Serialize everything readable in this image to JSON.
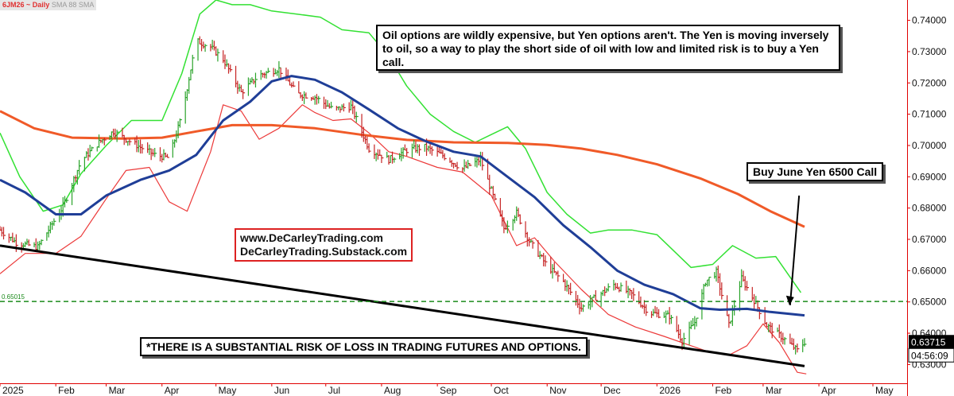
{
  "header": {
    "symbol_label": "6JM26 ~ Daily",
    "indicator_label": "SMA 88 SMA"
  },
  "annotations": {
    "main_note": "Oil options are wildly expensive, but Yen options aren't. The Yen is moving inversely to oil, so a way to play the short side of oil with low and limited risk is to buy a Yen call.",
    "trade_label": "Buy June Yen 6500 Call",
    "website_1": "www.DeCarleyTrading.com",
    "website_2": "DeCarleyTrading.Substack.com",
    "risk_disclaimer": "*THERE IS A SUBSTANTIAL RISK OF LOSS IN TRADING FUTURES AND OPTIONS."
  },
  "chart_data": {
    "type": "line",
    "title": "6JM26 ~ Daily",
    "xlabel": "",
    "ylabel": "",
    "x_range": [
      "2025-01-01",
      "2026-05-20"
    ],
    "ylim": [
      0.624,
      0.7465
    ],
    "grid": false,
    "y_ticks": [
      "0.74000",
      "0.73000",
      "0.72000",
      "0.71000",
      "0.70000",
      "0.69000",
      "0.68000",
      "0.67000",
      "0.66000",
      "0.65000",
      "0.64000",
      "0.63000"
    ],
    "x_ticks": [
      {
        "label": "2025",
        "date": "2025-01-01"
      },
      {
        "label": "Feb",
        "date": "2025-02-01"
      },
      {
        "label": "Mar",
        "date": "2025-03-01"
      },
      {
        "label": "Apr",
        "date": "2025-04-01"
      },
      {
        "label": "May",
        "date": "2025-05-01"
      },
      {
        "label": "Jun",
        "date": "2025-06-01"
      },
      {
        "label": "Jul",
        "date": "2025-07-01"
      },
      {
        "label": "Aug",
        "date": "2025-08-01"
      },
      {
        "label": "Sep",
        "date": "2025-09-01"
      },
      {
        "label": "Oct",
        "date": "2025-10-01"
      },
      {
        "label": "Nov",
        "date": "2025-11-01"
      },
      {
        "label": "Dec",
        "date": "2025-12-01"
      },
      {
        "label": "2026",
        "date": "2026-01-01"
      },
      {
        "label": "Feb",
        "date": "2026-02-01"
      },
      {
        "label": "Mar",
        "date": "2026-03-01"
      },
      {
        "label": "Apr",
        "date": "2026-04-01"
      },
      {
        "label": "May",
        "date": "2026-05-01"
      }
    ],
    "last_price": "0.63715",
    "countdown": "04:56:09",
    "strike_line": {
      "value": 0.65015,
      "label": "0.65015",
      "color": "#1a8a1a"
    },
    "trendline": {
      "from": [
        "2025-01-01",
        0.668
      ],
      "to": [
        "2026-03-24",
        0.6295
      ],
      "color": "#000000"
    },
    "arrow": {
      "from": [
        "2026-03-21",
        0.684
      ],
      "to": [
        "2026-03-16",
        0.651
      ]
    },
    "series": [
      {
        "key": "sma88",
        "color": "#f05a28",
        "points": [
          [
            "2025-01-01",
            0.711
          ],
          [
            "2025-01-20",
            0.7055
          ],
          [
            "2025-02-10",
            0.7025
          ],
          [
            "2025-03-10",
            0.7022
          ],
          [
            "2025-04-01",
            0.7025
          ],
          [
            "2025-04-20",
            0.7045
          ],
          [
            "2025-05-10",
            0.7065
          ],
          [
            "2025-06-01",
            0.7065
          ],
          [
            "2025-06-25",
            0.7055
          ],
          [
            "2025-07-20",
            0.7035
          ],
          [
            "2025-08-15",
            0.7018
          ],
          [
            "2025-09-10",
            0.701
          ],
          [
            "2025-10-10",
            0.7008
          ],
          [
            "2025-11-01",
            0.7002
          ],
          [
            "2025-11-20",
            0.699
          ],
          [
            "2025-12-10",
            0.697
          ],
          [
            "2026-01-01",
            0.694
          ],
          [
            "2026-01-25",
            0.6895
          ],
          [
            "2026-02-15",
            0.6845
          ],
          [
            "2026-03-05",
            0.679
          ],
          [
            "2026-03-24",
            0.674
          ]
        ]
      },
      {
        "key": "ma_blue",
        "color": "#1f3e97",
        "points": [
          [
            "2025-01-01",
            0.689
          ],
          [
            "2025-01-15",
            0.685
          ],
          [
            "2025-02-01",
            0.678
          ],
          [
            "2025-02-15",
            0.678
          ],
          [
            "2025-03-01",
            0.684
          ],
          [
            "2025-03-20",
            0.689
          ],
          [
            "2025-04-05",
            0.692
          ],
          [
            "2025-04-20",
            0.697
          ],
          [
            "2025-05-05",
            0.708
          ],
          [
            "2025-05-20",
            0.714
          ],
          [
            "2025-06-01",
            0.7205
          ],
          [
            "2025-06-12",
            0.7222
          ],
          [
            "2025-06-25",
            0.721
          ],
          [
            "2025-07-10",
            0.717
          ],
          [
            "2025-07-25",
            0.7115
          ],
          [
            "2025-08-10",
            0.7055
          ],
          [
            "2025-08-25",
            0.7015
          ],
          [
            "2025-09-10",
            0.698
          ],
          [
            "2025-09-25",
            0.6965
          ],
          [
            "2025-10-10",
            0.69
          ],
          [
            "2025-10-25",
            0.6835
          ],
          [
            "2025-11-10",
            0.6745
          ],
          [
            "2025-11-25",
            0.6675
          ],
          [
            "2025-12-10",
            0.66
          ],
          [
            "2025-12-25",
            0.6555
          ],
          [
            "2026-01-10",
            0.6525
          ],
          [
            "2026-01-25",
            0.648
          ],
          [
            "2026-02-05",
            0.6475
          ],
          [
            "2026-02-20",
            0.6478
          ],
          [
            "2026-03-05",
            0.6468
          ],
          [
            "2026-03-24",
            0.6457
          ]
        ]
      },
      {
        "key": "band_upper",
        "color": "#33e133",
        "points": [
          [
            "2025-01-01",
            0.704
          ],
          [
            "2025-01-12",
            0.69
          ],
          [
            "2025-01-25",
            0.679
          ],
          [
            "2025-02-05",
            0.681
          ],
          [
            "2025-02-15",
            0.691
          ],
          [
            "2025-03-01",
            0.7
          ],
          [
            "2025-03-15",
            0.708
          ],
          [
            "2025-04-01",
            0.708
          ],
          [
            "2025-04-12",
            0.723
          ],
          [
            "2025-04-22",
            0.742
          ],
          [
            "2025-05-01",
            0.7465
          ],
          [
            "2025-05-10",
            0.745
          ],
          [
            "2025-05-20",
            0.745
          ],
          [
            "2025-06-01",
            0.743
          ],
          [
            "2025-06-15",
            0.742
          ],
          [
            "2025-06-28",
            0.741
          ],
          [
            "2025-07-10",
            0.737
          ],
          [
            "2025-07-25",
            0.736
          ],
          [
            "2025-08-05",
            0.7285
          ],
          [
            "2025-08-15",
            0.719
          ],
          [
            "2025-08-28",
            0.71
          ],
          [
            "2025-09-10",
            0.7045
          ],
          [
            "2025-09-22",
            0.701
          ],
          [
            "2025-10-01",
            0.7035
          ],
          [
            "2025-10-10",
            0.706
          ],
          [
            "2025-10-20",
            0.699
          ],
          [
            "2025-11-01",
            0.685
          ],
          [
            "2025-11-12",
            0.678
          ],
          [
            "2025-11-25",
            0.672
          ],
          [
            "2025-12-05",
            0.673
          ],
          [
            "2025-12-18",
            0.673
          ],
          [
            "2026-01-01",
            0.6715
          ],
          [
            "2026-01-20",
            0.661
          ],
          [
            "2026-02-01",
            0.662
          ],
          [
            "2026-02-12",
            0.668
          ],
          [
            "2026-02-25",
            0.664
          ],
          [
            "2026-03-08",
            0.6645
          ],
          [
            "2026-03-22",
            0.653
          ]
        ]
      },
      {
        "key": "band_lower",
        "color": "#ec3a3a",
        "points": [
          [
            "2025-01-01",
            0.659
          ],
          [
            "2025-01-15",
            0.6655
          ],
          [
            "2025-02-01",
            0.6655
          ],
          [
            "2025-02-15",
            0.671
          ],
          [
            "2025-03-01",
            0.683
          ],
          [
            "2025-03-12",
            0.692
          ],
          [
            "2025-03-25",
            0.693
          ],
          [
            "2025-04-05",
            0.682
          ],
          [
            "2025-04-15",
            0.679
          ],
          [
            "2025-04-28",
            0.698
          ],
          [
            "2025-05-05",
            0.713
          ],
          [
            "2025-05-15",
            0.711
          ],
          [
            "2025-05-25",
            0.702
          ],
          [
            "2025-06-05",
            0.7055
          ],
          [
            "2025-06-18",
            0.713
          ],
          [
            "2025-06-25",
            0.7105
          ],
          [
            "2025-07-05",
            0.708
          ],
          [
            "2025-07-15",
            0.7085
          ],
          [
            "2025-07-25",
            0.704
          ],
          [
            "2025-08-05",
            0.698
          ],
          [
            "2025-08-15",
            0.6965
          ],
          [
            "2025-09-01",
            0.693
          ],
          [
            "2025-09-15",
            0.6915
          ],
          [
            "2025-10-01",
            0.684
          ],
          [
            "2025-10-15",
            0.668
          ],
          [
            "2025-10-25",
            0.6705
          ],
          [
            "2025-11-05",
            0.663
          ],
          [
            "2025-11-20",
            0.654
          ],
          [
            "2025-12-05",
            0.646
          ],
          [
            "2025-12-20",
            0.642
          ],
          [
            "2026-01-05",
            0.639
          ],
          [
            "2026-01-20",
            0.636
          ],
          [
            "2026-01-30",
            0.634
          ],
          [
            "2026-02-10",
            0.633
          ],
          [
            "2026-02-20",
            0.636
          ],
          [
            "2026-03-01",
            0.643
          ],
          [
            "2026-03-10",
            0.637
          ],
          [
            "2026-03-20",
            0.6275
          ],
          [
            "2026-03-25",
            0.627
          ]
        ]
      }
    ],
    "price_path": {
      "key": "price_bars",
      "up_color": "#2aa32a",
      "down_color": "#c62424",
      "points": [
        [
          "2025-01-01",
          0.673
        ],
        [
          "2025-01-10",
          0.669
        ],
        [
          "2025-01-22",
          0.6675
        ],
        [
          "2025-02-05",
          0.6805
        ],
        [
          "2025-02-15",
          0.695
        ],
        [
          "2025-02-25",
          0.701
        ],
        [
          "2025-03-05",
          0.7045
        ],
        [
          "2025-03-15",
          0.701
        ],
        [
          "2025-03-28",
          0.697
        ],
        [
          "2025-04-05",
          0.696
        ],
        [
          "2025-04-12",
          0.7095
        ],
        [
          "2025-04-20",
          0.7335
        ],
        [
          "2025-04-28",
          0.7315
        ],
        [
          "2025-05-05",
          0.7275
        ],
        [
          "2025-05-15",
          0.717
        ],
        [
          "2025-05-25",
          0.7225
        ],
        [
          "2025-06-05",
          0.7245
        ],
        [
          "2025-06-15",
          0.7165
        ],
        [
          "2025-06-25",
          0.7155
        ],
        [
          "2025-07-05",
          0.7115
        ],
        [
          "2025-07-15",
          0.7125
        ],
        [
          "2025-07-25",
          0.699
        ],
        [
          "2025-08-05",
          0.6955
        ],
        [
          "2025-08-15",
          0.6985
        ],
        [
          "2025-08-25",
          0.6995
        ],
        [
          "2025-09-05",
          0.6965
        ],
        [
          "2025-09-15",
          0.6925
        ],
        [
          "2025-09-25",
          0.6955
        ],
        [
          "2025-10-01",
          0.6855
        ],
        [
          "2025-10-08",
          0.6735
        ],
        [
          "2025-10-15",
          0.6785
        ],
        [
          "2025-10-22",
          0.6695
        ],
        [
          "2025-11-01",
          0.6615
        ],
        [
          "2025-11-10",
          0.6565
        ],
        [
          "2025-11-20",
          0.648
        ],
        [
          "2025-11-28",
          0.6515
        ],
        [
          "2025-12-08",
          0.6555
        ],
        [
          "2025-12-18",
          0.6525
        ],
        [
          "2025-12-28",
          0.6465
        ],
        [
          "2026-01-08",
          0.6455
        ],
        [
          "2026-01-15",
          0.6375
        ],
        [
          "2026-01-22",
          0.6435
        ],
        [
          "2026-01-28",
          0.6565
        ],
        [
          "2026-02-03",
          0.6595
        ],
        [
          "2026-02-10",
          0.6425
        ],
        [
          "2026-02-17",
          0.6575
        ],
        [
          "2026-02-24",
          0.6505
        ],
        [
          "2026-03-03",
          0.6425
        ],
        [
          "2026-03-12",
          0.6385
        ],
        [
          "2026-03-20",
          0.6345
        ],
        [
          "2026-03-24",
          0.6372
        ]
      ]
    }
  },
  "colors": {
    "axis": "#e00000",
    "label_green": "#1a8a1a",
    "price_tag_bg": "#000000",
    "price_tag_text": "#ffffff"
  }
}
